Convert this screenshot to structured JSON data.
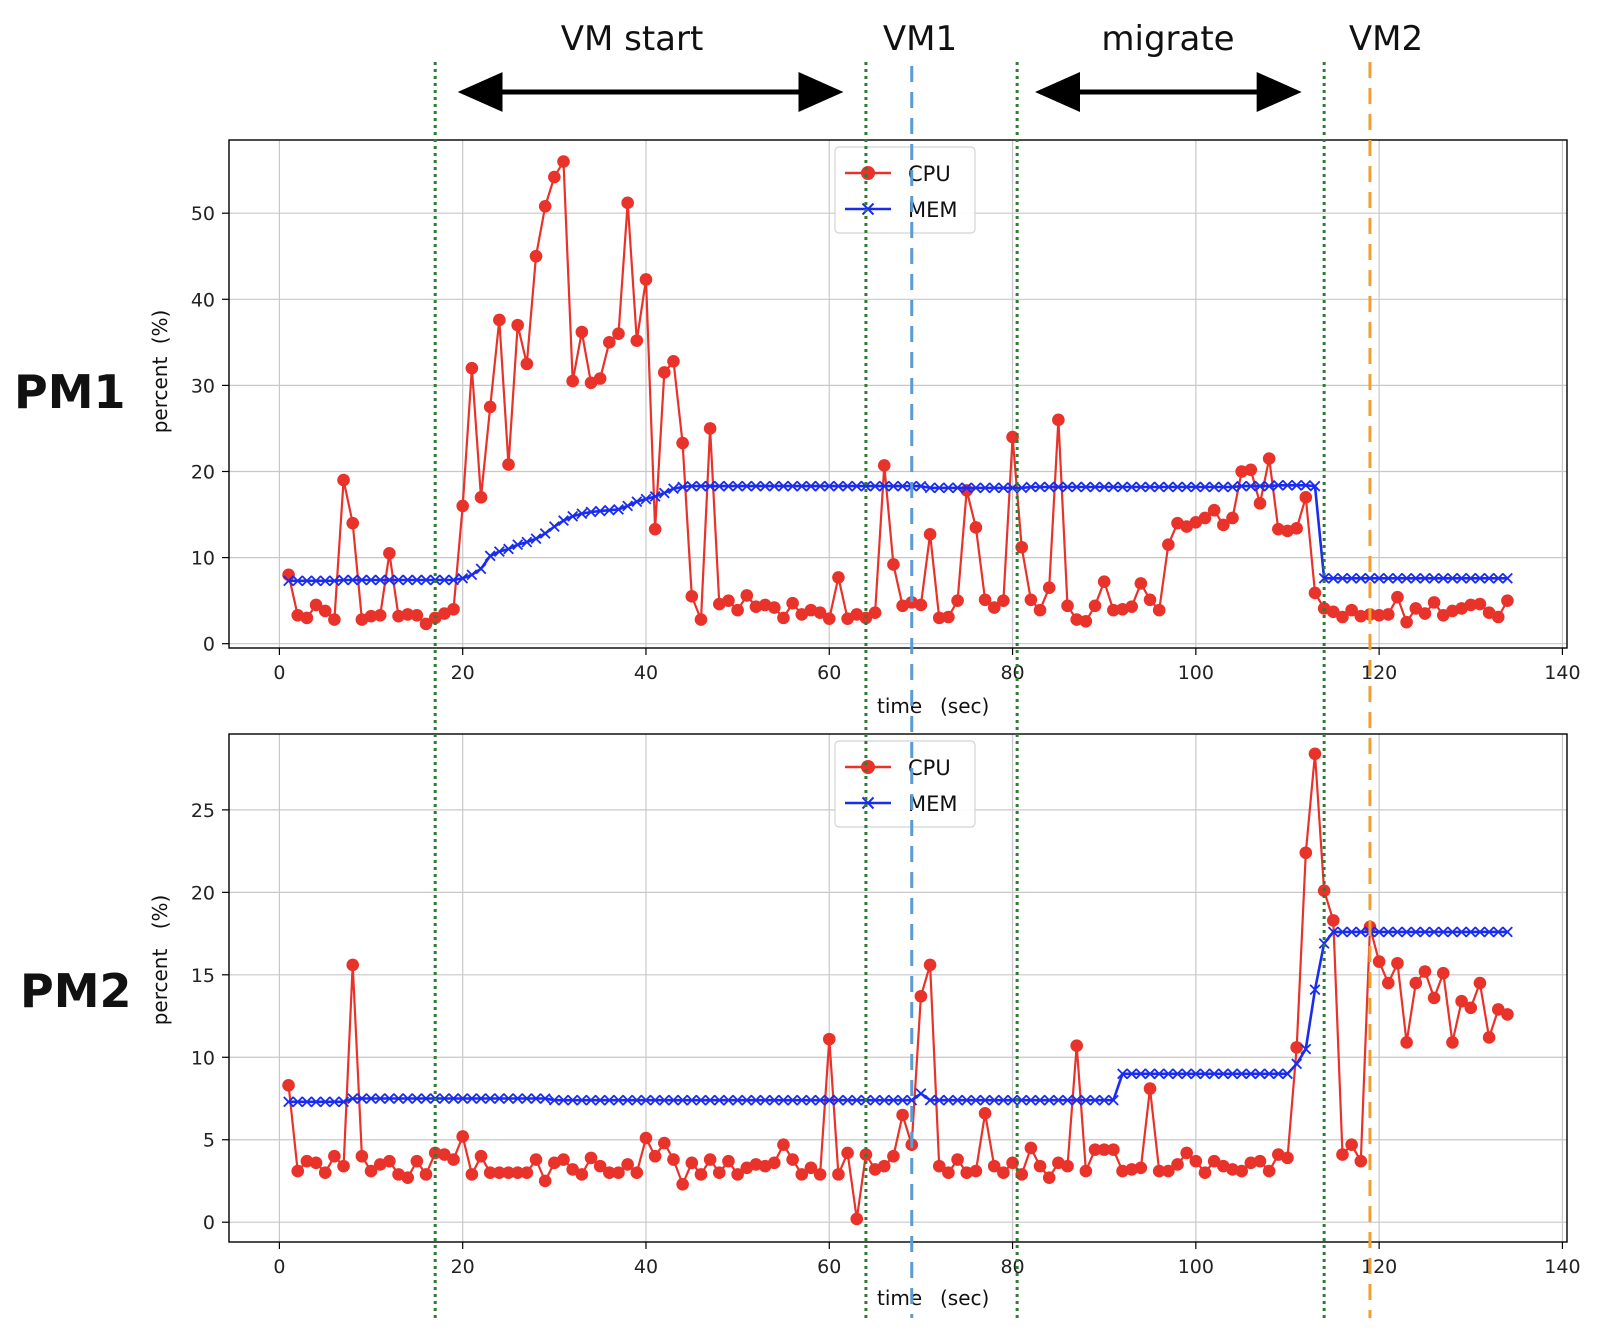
{
  "figure": {
    "annotations": {
      "vm_start": "VM start",
      "vm1": "VM1",
      "migrate": "migrate",
      "vm2": "VM2"
    },
    "colors": {
      "cpu": "#e8322a",
      "mem": "#1a2cf0",
      "green_marker": "#2e7d32",
      "vm1_marker": "#5b9bd5",
      "vm2_marker": "#f0a030"
    },
    "event_lines_sec": {
      "dotted_green": [
        17,
        64,
        80.5,
        114
      ],
      "vm1_dashed": 69,
      "vm2_dashed": 119
    },
    "arrows_sec": {
      "vm_start": [
        20,
        61
      ],
      "migrate": [
        83,
        111
      ]
    }
  },
  "chart_data": [
    {
      "type": "line",
      "panel_label": "PM1",
      "xlabel": "time",
      "xlabel_unit": "(sec)",
      "ylabel": "percent",
      "ylabel_unit": "(%)",
      "xlim": [
        -5.5,
        140.5
      ],
      "ylim": [
        -0.5,
        58.5
      ],
      "xticks": [
        "0",
        "20",
        "40",
        "60",
        "80",
        "100",
        "120",
        "140"
      ],
      "yticks": [
        "0",
        "10",
        "20",
        "30",
        "40",
        "50"
      ],
      "grid": true,
      "legend": "top-center",
      "x": [
        1,
        2,
        3,
        4,
        5,
        6,
        7,
        8,
        9,
        10,
        11,
        12,
        13,
        14,
        15,
        16,
        17,
        18,
        19,
        20,
        21,
        22,
        23,
        24,
        25,
        26,
        27,
        28,
        29,
        30,
        31,
        32,
        33,
        34,
        35,
        36,
        37,
        38,
        39,
        40,
        41,
        42,
        43,
        44,
        45,
        46,
        47,
        48,
        49,
        50,
        51,
        52,
        53,
        54,
        55,
        56,
        57,
        58,
        59,
        60,
        61,
        62,
        63,
        64,
        65,
        66,
        67,
        68,
        69,
        70,
        71,
        72,
        73,
        74,
        75,
        76,
        77,
        78,
        79,
        80,
        81,
        82,
        83,
        84,
        85,
        86,
        87,
        88,
        89,
        90,
        91,
        92,
        93,
        94,
        95,
        96,
        97,
        98,
        99,
        100,
        101,
        102,
        103,
        104,
        105,
        106,
        107,
        108,
        109,
        110,
        111,
        112,
        113,
        114,
        115,
        116,
        117,
        118,
        119,
        120,
        121,
        122,
        123,
        124,
        125,
        126,
        127,
        128,
        129,
        130,
        131,
        132,
        133,
        134
      ],
      "series": [
        {
          "name": "CPU",
          "marker": "circle",
          "values": [
            8,
            3.3,
            3,
            4.5,
            3.8,
            2.8,
            19,
            14,
            2.8,
            3.2,
            3.3,
            10.5,
            3.2,
            3.4,
            3.3,
            2.3,
            3,
            3.5,
            4,
            16,
            32,
            17,
            27.5,
            37.6,
            20.8,
            37,
            32.5,
            45,
            50.8,
            54.2,
            56,
            30.5,
            36.2,
            30.3,
            30.8,
            35,
            36,
            51.2,
            35.2,
            42.3,
            13.3,
            31.5,
            32.8,
            23.3,
            5.5,
            2.8,
            25,
            4.6,
            5,
            3.9,
            5.6,
            4.3,
            4.5,
            4.2,
            3,
            4.7,
            3.4,
            3.9,
            3.6,
            2.9,
            7.7,
            2.9,
            3.4,
            3,
            3.6,
            20.7,
            9.2,
            4.4,
            4.8,
            4.5,
            12.7,
            3,
            3.1,
            5,
            17.8,
            13.5,
            5.1,
            4.2,
            5,
            24,
            11.2,
            5.1,
            3.9,
            6.5,
            26,
            4.4,
            2.8,
            2.6,
            4.4,
            7.2,
            3.9,
            4,
            4.3,
            7,
            5.1,
            3.9,
            11.5,
            14,
            13.6,
            14.1,
            14.6,
            15.5,
            13.8,
            14.6,
            20,
            20.2,
            16.3,
            21.5,
            13.3,
            13.1,
            13.4,
            17,
            5.9,
            4.1,
            3.7,
            3.1,
            3.9,
            3.2,
            3.4,
            3.3,
            3.4,
            5.4,
            2.5,
            4.1,
            3.5,
            4.8,
            3.3,
            3.8,
            4.1,
            4.5,
            4.6,
            3.6,
            3.1,
            5
          ]
        },
        {
          "name": "MEM",
          "marker": "x",
          "values": [
            7.3,
            7.3,
            7.3,
            7.3,
            7.3,
            7.3,
            7.4,
            7.4,
            7.4,
            7.4,
            7.4,
            7.4,
            7.4,
            7.4,
            7.4,
            7.4,
            7.4,
            7.4,
            7.4,
            7.6,
            8,
            8.7,
            10.2,
            10.7,
            11,
            11.5,
            11.8,
            12.2,
            12.8,
            13.6,
            14.3,
            14.8,
            15.1,
            15.3,
            15.4,
            15.5,
            15.6,
            16,
            16.5,
            16.8,
            17.1,
            17.5,
            18,
            18.2,
            18.3,
            18.3,
            18.3,
            18.3,
            18.3,
            18.3,
            18.3,
            18.3,
            18.3,
            18.3,
            18.3,
            18.3,
            18.3,
            18.3,
            18.3,
            18.3,
            18.3,
            18.3,
            18.3,
            18.3,
            18.3,
            18.3,
            18.3,
            18.3,
            18.3,
            18.3,
            18.1,
            18.1,
            18.1,
            18.1,
            18.1,
            18.1,
            18.1,
            18.1,
            18.1,
            18.1,
            18.1,
            18.2,
            18.2,
            18.2,
            18.2,
            18.2,
            18.2,
            18.2,
            18.2,
            18.2,
            18.2,
            18.2,
            18.2,
            18.2,
            18.2,
            18.2,
            18.2,
            18.2,
            18.2,
            18.2,
            18.2,
            18.2,
            18.2,
            18.2,
            18.3,
            18.3,
            18.3,
            18.3,
            18.4,
            18.4,
            18.4,
            18.4,
            18.3,
            7.6,
            7.6,
            7.6,
            7.6,
            7.6,
            7.6,
            7.6,
            7.6,
            7.6,
            7.6,
            7.6,
            7.6,
            7.6,
            7.6,
            7.6,
            7.6,
            7.6,
            7.6,
            7.6,
            7.6,
            7.6
          ]
        }
      ]
    },
    {
      "type": "line",
      "panel_label": "PM2",
      "xlabel": "time",
      "xlabel_unit": "(sec)",
      "ylabel": "percent",
      "ylabel_unit": "(%)",
      "xlim": [
        -5.5,
        140.5
      ],
      "ylim": [
        -1.2,
        29.6
      ],
      "xticks": [
        "0",
        "20",
        "40",
        "60",
        "80",
        "100",
        "120",
        "140"
      ],
      "yticks": [
        "0",
        "5",
        "10",
        "15",
        "20",
        "25"
      ],
      "grid": true,
      "legend": "top-center",
      "x": [
        1,
        2,
        3,
        4,
        5,
        6,
        7,
        8,
        9,
        10,
        11,
        12,
        13,
        14,
        15,
        16,
        17,
        18,
        19,
        20,
        21,
        22,
        23,
        24,
        25,
        26,
        27,
        28,
        29,
        30,
        31,
        32,
        33,
        34,
        35,
        36,
        37,
        38,
        39,
        40,
        41,
        42,
        43,
        44,
        45,
        46,
        47,
        48,
        49,
        50,
        51,
        52,
        53,
        54,
        55,
        56,
        57,
        58,
        59,
        60,
        61,
        62,
        63,
        64,
        65,
        66,
        67,
        68,
        69,
        70,
        71,
        72,
        73,
        74,
        75,
        76,
        77,
        78,
        79,
        80,
        81,
        82,
        83,
        84,
        85,
        86,
        87,
        88,
        89,
        90,
        91,
        92,
        93,
        94,
        95,
        96,
        97,
        98,
        99,
        100,
        101,
        102,
        103,
        104,
        105,
        106,
        107,
        108,
        109,
        110,
        111,
        112,
        113,
        114,
        115,
        116,
        117,
        118,
        119,
        120,
        121,
        122,
        123,
        124,
        125,
        126,
        127,
        128,
        129,
        130,
        131,
        132,
        133,
        134
      ],
      "series": [
        {
          "name": "CPU",
          "marker": "circle",
          "values": [
            8.3,
            3.1,
            3.7,
            3.6,
            3,
            4,
            3.4,
            15.6,
            4,
            3.1,
            3.5,
            3.7,
            2.9,
            2.7,
            3.7,
            2.9,
            4.2,
            4.1,
            3.8,
            5.2,
            2.9,
            4,
            3,
            3,
            3,
            3,
            3,
            3.8,
            2.5,
            3.6,
            3.8,
            3.2,
            2.9,
            3.9,
            3.4,
            3,
            3,
            3.5,
            3,
            5.1,
            4,
            4.8,
            3.8,
            2.3,
            3.6,
            2.9,
            3.8,
            3,
            3.7,
            2.9,
            3.3,
            3.5,
            3.4,
            3.6,
            4.7,
            3.8,
            2.9,
            3.3,
            2.9,
            11.1,
            2.9,
            4.2,
            0.2,
            4.1,
            3.2,
            3.4,
            4,
            6.5,
            4.7,
            13.7,
            15.6,
            3.4,
            3,
            3.8,
            3,
            3.1,
            6.6,
            3.4,
            3,
            3.6,
            2.9,
            4.5,
            3.4,
            2.7,
            3.6,
            3.4,
            10.7,
            3.1,
            4.4,
            4.4,
            4.4,
            3.1,
            3.2,
            3.3,
            8.1,
            3.1,
            3.1,
            3.5,
            4.2,
            3.7,
            3,
            3.7,
            3.4,
            3.2,
            3.1,
            3.6,
            3.7,
            3.1,
            4.1,
            3.9,
            10.6,
            22.4,
            28.4,
            20.1,
            18.3,
            4.1,
            4.7,
            3.7,
            17.9,
            15.8,
            14.5,
            15.7,
            10.9,
            14.5,
            15.2,
            13.6,
            15.1,
            10.9,
            13.4,
            13,
            14.5,
            11.2,
            12.9,
            12.6
          ]
        },
        {
          "name": "MEM",
          "marker": "x",
          "values": [
            7.3,
            7.3,
            7.3,
            7.3,
            7.3,
            7.3,
            7.3,
            7.5,
            7.5,
            7.5,
            7.5,
            7.5,
            7.5,
            7.5,
            7.5,
            7.5,
            7.5,
            7.5,
            7.5,
            7.5,
            7.5,
            7.5,
            7.5,
            7.5,
            7.5,
            7.5,
            7.5,
            7.5,
            7.5,
            7.4,
            7.4,
            7.4,
            7.4,
            7.4,
            7.4,
            7.4,
            7.4,
            7.4,
            7.4,
            7.4,
            7.4,
            7.4,
            7.4,
            7.4,
            7.4,
            7.4,
            7.4,
            7.4,
            7.4,
            7.4,
            7.4,
            7.4,
            7.4,
            7.4,
            7.4,
            7.4,
            7.4,
            7.4,
            7.4,
            7.4,
            7.4,
            7.4,
            7.4,
            7.4,
            7.4,
            7.4,
            7.4,
            7.4,
            7.4,
            7.8,
            7.4,
            7.4,
            7.4,
            7.4,
            7.4,
            7.4,
            7.4,
            7.4,
            7.4,
            7.4,
            7.4,
            7.4,
            7.4,
            7.4,
            7.4,
            7.4,
            7.4,
            7.4,
            7.4,
            7.4,
            7.4,
            9,
            9,
            9,
            9,
            9,
            9,
            9,
            9,
            9,
            9,
            9,
            9,
            9,
            9,
            9,
            9,
            9,
            9,
            9,
            9.6,
            10.5,
            14.1,
            16.9,
            17.6,
            17.6,
            17.6,
            17.6,
            17.6,
            17.6,
            17.6,
            17.6,
            17.6,
            17.6,
            17.6,
            17.6,
            17.6,
            17.6,
            17.6,
            17.6,
            17.6,
            17.6,
            17.6,
            17.6
          ]
        }
      ]
    }
  ]
}
